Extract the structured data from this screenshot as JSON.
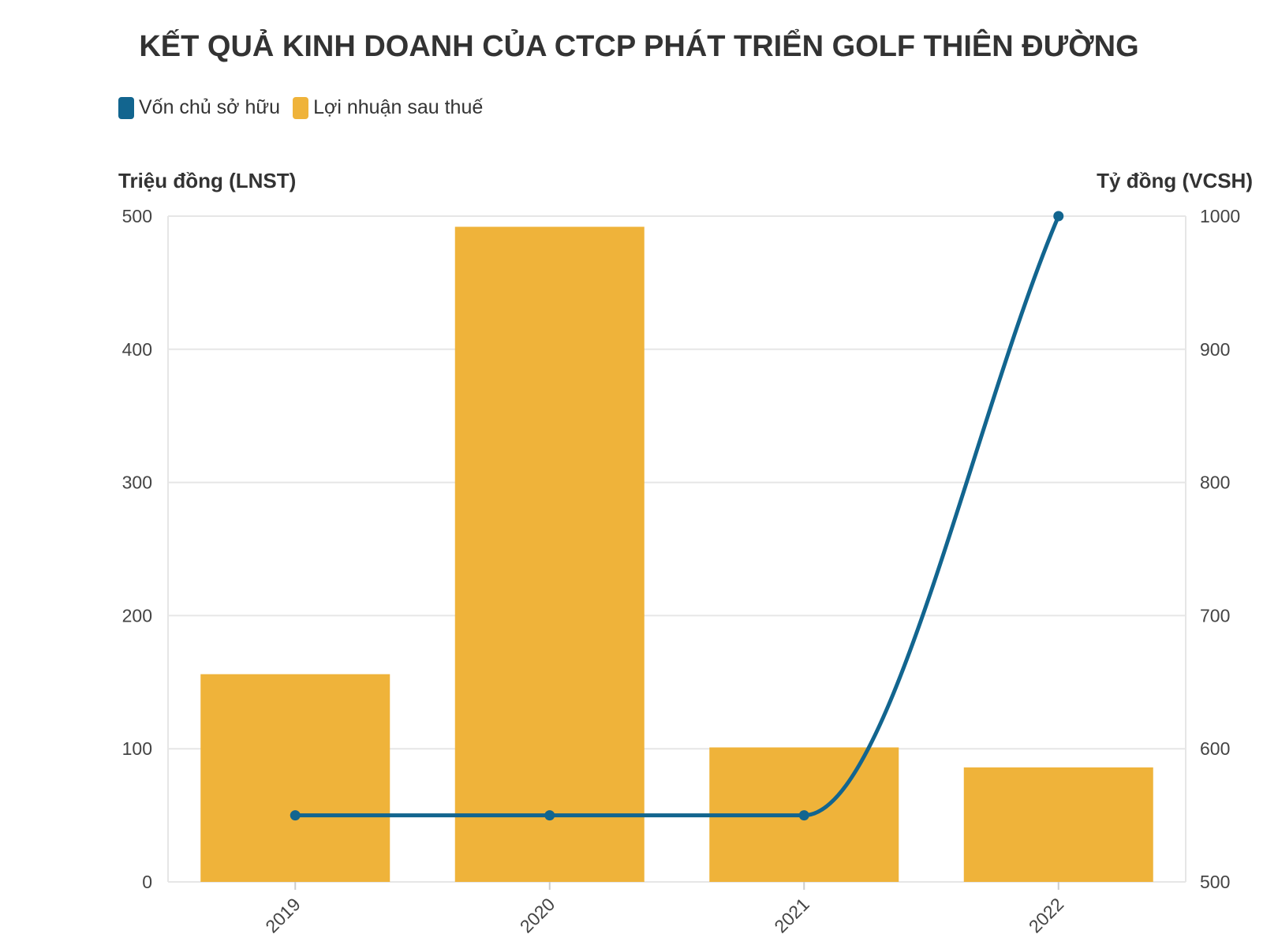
{
  "title": "KẾT QUẢ KINH DOANH CỦA CTCP PHÁT TRIỂN GOLF THIÊN ĐƯỜNG",
  "legend": [
    {
      "label": "Vốn chủ sở hữu",
      "color": "#12658f"
    },
    {
      "label": "Lợi nhuận sau thuế",
      "color": "#efb33a"
    }
  ],
  "chart_data": {
    "type": "bar",
    "categories": [
      "2019",
      "2020",
      "2021",
      "2022"
    ],
    "series": [
      {
        "name": "Lợi nhuận sau thuế",
        "type": "bar",
        "axis": "left",
        "color": "#efb33a",
        "values": [
          156,
          492,
          101,
          86
        ]
      },
      {
        "name": "Vốn chủ sở hữu",
        "type": "line",
        "axis": "right",
        "color": "#12658f",
        "values": [
          550,
          550,
          550,
          1000
        ]
      }
    ],
    "y_left": {
      "label": "Triệu đồng (LNST)",
      "ylim": [
        0,
        500
      ],
      "ticks": [
        "0",
        "100",
        "200",
        "300",
        "400",
        "500"
      ]
    },
    "y_right": {
      "label": "Tỷ đồng (VCSH)",
      "ylim": [
        500,
        1000
      ],
      "ticks": [
        "500",
        "600",
        "700",
        "800",
        "900",
        "1000"
      ]
    },
    "grid": true,
    "legend_position": "top-left"
  }
}
